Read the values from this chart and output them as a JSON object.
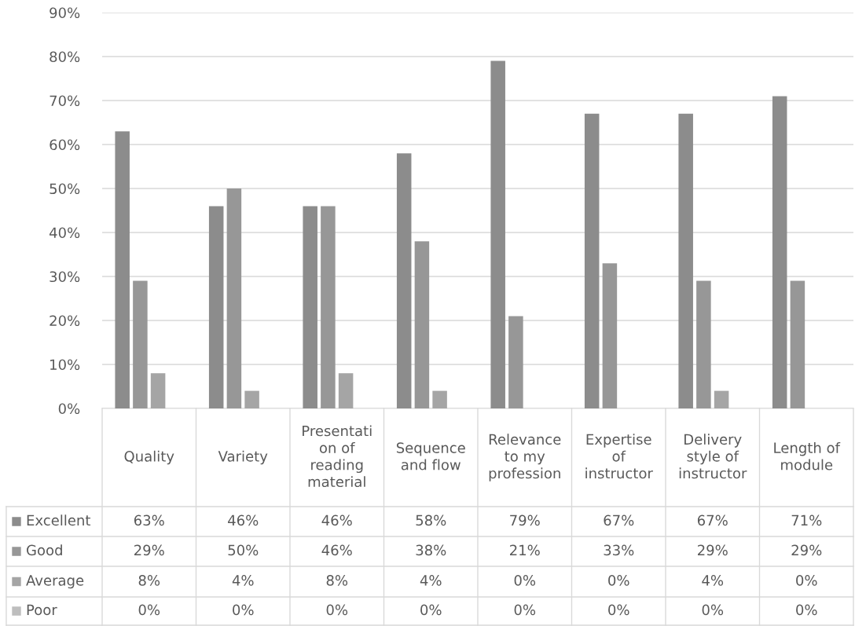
{
  "chart_data": {
    "type": "bar",
    "categories": [
      "Quality",
      "Variety",
      "Presentation of reading material",
      "Sequence and flow",
      "Relevance to my profession",
      "Expertise of instructor",
      "Delivery style of instructor",
      "Length of module"
    ],
    "series": [
      {
        "name": "Excellent",
        "color": "#8c8c8c",
        "values": [
          63,
          46,
          46,
          58,
          79,
          67,
          67,
          71
        ],
        "value_labels": [
          "63%",
          "46%",
          "46%",
          "58%",
          "79%",
          "67%",
          "67%",
          "71%"
        ]
      },
      {
        "name": "Good",
        "color": "#979797",
        "values": [
          29,
          50,
          46,
          38,
          21,
          33,
          29,
          29
        ],
        "value_labels": [
          "29%",
          "50%",
          "46%",
          "38%",
          "21%",
          "33%",
          "29%",
          "29%"
        ]
      },
      {
        "name": "Average",
        "color": "#a5a5a5",
        "values": [
          8,
          4,
          8,
          4,
          0,
          0,
          4,
          0
        ],
        "value_labels": [
          "8%",
          "4%",
          "8%",
          "4%",
          "0%",
          "0%",
          "4%",
          "0%"
        ]
      },
      {
        "name": "Poor",
        "color": "#bebebe",
        "values": [
          0,
          0,
          0,
          0,
          0,
          0,
          0,
          0
        ],
        "value_labels": [
          "0%",
          "0%",
          "0%",
          "0%",
          "0%",
          "0%",
          "0%",
          "0%"
        ]
      }
    ],
    "ylim": [
      0,
      90
    ],
    "yticks": [
      {
        "value": 0,
        "label": "0%"
      },
      {
        "value": 10,
        "label": "10%"
      },
      {
        "value": 20,
        "label": "20%"
      },
      {
        "value": 30,
        "label": "30%"
      },
      {
        "value": 40,
        "label": "40%"
      },
      {
        "value": 50,
        "label": "50%"
      },
      {
        "value": 60,
        "label": "60%"
      },
      {
        "value": 70,
        "label": "70%"
      },
      {
        "value": 80,
        "label": "80%"
      },
      {
        "value": 90,
        "label": "90%"
      }
    ],
    "grid": "y",
    "legend": "bottom left"
  }
}
